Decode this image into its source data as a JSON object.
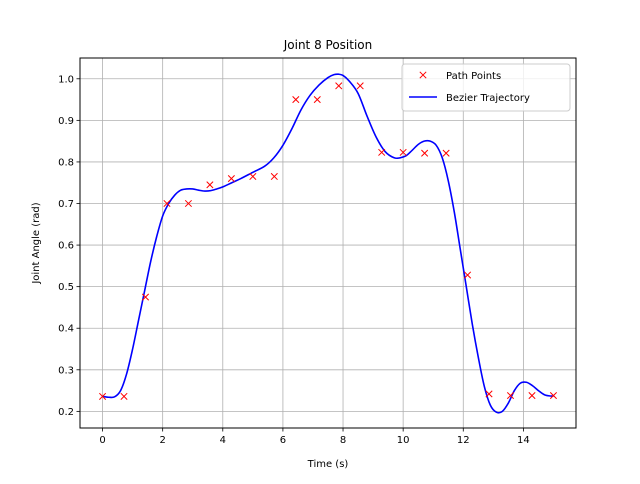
{
  "chart_data": {
    "type": "line",
    "title": "Joint 8 Position",
    "xlabel": "Time (s)",
    "ylabel": "Joint Angle (rad)",
    "xlim": [
      -0.75,
      15.75
    ],
    "ylim": [
      0.16,
      1.05
    ],
    "xticks": [
      0,
      2,
      4,
      6,
      8,
      10,
      12,
      14
    ],
    "yticks": [
      0.2,
      0.3,
      0.4,
      0.5,
      0.6,
      0.7,
      0.8,
      0.9,
      1.0
    ],
    "xtick_labels": [
      "0",
      "2",
      "4",
      "6",
      "8",
      "10",
      "12",
      "14"
    ],
    "ytick_labels": [
      "0.2",
      "0.3",
      "0.4",
      "0.5",
      "0.6",
      "0.7",
      "0.8",
      "0.9",
      "1.0"
    ],
    "grid": true,
    "legend_position": "top-right",
    "series": [
      {
        "name": "Path Points",
        "kind": "scatter",
        "marker": "x",
        "color": "#ff0000",
        "x": [
          0,
          0.714,
          1.429,
          2.143,
          2.857,
          3.571,
          4.286,
          5.0,
          5.714,
          6.429,
          7.143,
          7.857,
          8.571,
          9.286,
          10.0,
          10.714,
          11.429,
          12.143,
          12.857,
          13.571,
          14.286,
          15.0
        ],
        "y": [
          0.236,
          0.236,
          0.475,
          0.7,
          0.7,
          0.745,
          0.76,
          0.765,
          0.765,
          0.95,
          0.95,
          0.983,
          0.983,
          0.823,
          0.823,
          0.821,
          0.821,
          0.528,
          0.242,
          0.238,
          0.238,
          0.238
        ]
      },
      {
        "name": "Bezier Trajectory",
        "kind": "line",
        "color": "#0000ff",
        "x": [
          0,
          0.2,
          0.4,
          0.6,
          0.8,
          1.0,
          1.2,
          1.4,
          1.6,
          1.8,
          2.0,
          2.2,
          2.4,
          2.6,
          2.8,
          3.0,
          3.2,
          3.4,
          3.6,
          3.8,
          4.0,
          4.3,
          4.6,
          5.0,
          5.4,
          5.7,
          6.0,
          6.3,
          6.6,
          6.9,
          7.2,
          7.5,
          7.7,
          7.85,
          8.0,
          8.2,
          8.5,
          8.8,
          9.1,
          9.4,
          9.7,
          9.9,
          10.1,
          10.3,
          10.5,
          10.7,
          10.9,
          11.1,
          11.3,
          11.5,
          11.7,
          11.9,
          12.1,
          12.3,
          12.5,
          12.7,
          12.9,
          13.1,
          13.3,
          13.5,
          13.7,
          13.9,
          14.1,
          14.3,
          14.5,
          14.7,
          14.9,
          15.0
        ],
        "y": [
          0.236,
          0.234,
          0.235,
          0.25,
          0.29,
          0.35,
          0.42,
          0.49,
          0.56,
          0.62,
          0.67,
          0.7,
          0.72,
          0.732,
          0.735,
          0.735,
          0.732,
          0.73,
          0.731,
          0.735,
          0.74,
          0.75,
          0.76,
          0.775,
          0.79,
          0.81,
          0.84,
          0.88,
          0.925,
          0.96,
          0.985,
          1.003,
          1.01,
          1.011,
          1.008,
          0.995,
          0.965,
          0.91,
          0.86,
          0.825,
          0.81,
          0.81,
          0.815,
          0.828,
          0.842,
          0.85,
          0.85,
          0.84,
          0.81,
          0.755,
          0.68,
          0.59,
          0.5,
          0.41,
          0.33,
          0.26,
          0.215,
          0.198,
          0.2,
          0.22,
          0.25,
          0.268,
          0.27,
          0.262,
          0.25,
          0.24,
          0.237,
          0.237
        ]
      }
    ]
  }
}
